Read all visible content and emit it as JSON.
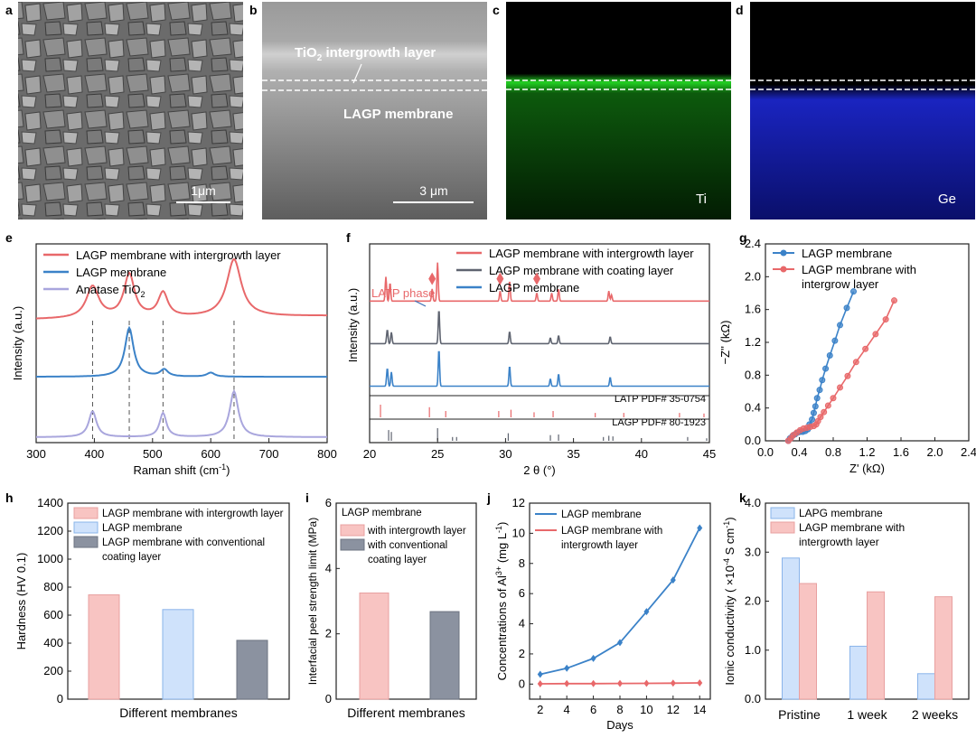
{
  "figure": {
    "panel_letters": {
      "a": "a",
      "b": "b",
      "c": "c",
      "d": "d",
      "e": "e",
      "f": "f",
      "g": "g",
      "h": "h",
      "i": "i",
      "j": "j",
      "k": "k"
    },
    "images": {
      "a": {
        "description_scale": "1μm"
      },
      "b": {
        "top_label_main": "TiO",
        "top_label_sub": "2",
        "top_label_rest": " intergrowth layer",
        "bottom_label": "LAGP membrane",
        "scale": "3 μm"
      },
      "c": {
        "element": "Ti",
        "color": "#2fbf2f"
      },
      "d": {
        "element": "Ge",
        "color": "#2a35e0"
      }
    }
  },
  "colors": {
    "red": "#e8686a",
    "blue": "#3b82c8",
    "lavender": "#a9a6dd",
    "gray": "#5f6470",
    "pink_fill": "#f8c4c2",
    "blue_fill": "#cfe2fb",
    "gray_fill": "#8b92a0"
  },
  "chart_data": [
    {
      "panel": "e",
      "type": "line",
      "xlabel": "Raman shift (cm",
      "xlabel_sup": "-1",
      "xlabel_end": ")",
      "ylabel": "Intensity (a.u.)",
      "xlim": [
        300,
        800
      ],
      "xticks": [
        "300",
        "400",
        "500",
        "600",
        "700",
        "800"
      ],
      "ref_lines": [
        397,
        460,
        518,
        640
      ],
      "series": [
        {
          "name": "LAGP membrane with intergrowth layer",
          "color": "#e8686a",
          "offset": 2.05,
          "baseline": 0.06,
          "peaks": [
            [
              397,
              0.55,
              13
            ],
            [
              460,
              0.75,
              11
            ],
            [
              518,
              0.42,
              10
            ],
            [
              640,
              1.0,
              15
            ]
          ]
        },
        {
          "name": "LAGP membrane",
          "color": "#3b82c8",
          "offset": 1.05,
          "baseline": 0.0,
          "peaks": [
            [
              460,
              0.85,
              9
            ],
            [
              520,
              0.12,
              8
            ],
            [
              600,
              0.07,
              8
            ]
          ]
        },
        {
          "name": "Anatase TiO",
          "name_sub": "2",
          "color": "#a9a6dd",
          "offset": 0.0,
          "baseline": 0.0,
          "peaks": [
            [
              397,
              0.45,
              8
            ],
            [
              518,
              0.42,
              7
            ],
            [
              640,
              0.8,
              9
            ]
          ]
        }
      ]
    },
    {
      "panel": "f",
      "type": "line",
      "xlabel": "2 θ (°)",
      "ylabel": "Intensity (a.u.)",
      "xlim": [
        20,
        45
      ],
      "xticks": [
        "20",
        "25",
        "30",
        "35",
        "40",
        "45"
      ],
      "annotation": "LATP phase",
      "diamonds": [
        24.6,
        29.6,
        32.3
      ],
      "series": [
        {
          "name": "LAGP membrane with intergrowth layer",
          "color": "#e8686a",
          "offset": 2.2,
          "peaks": [
            [
              21.2,
              0.6
            ],
            [
              21.5,
              0.45
            ],
            [
              24.6,
              0.3
            ],
            [
              25.0,
              0.95
            ],
            [
              29.6,
              0.25
            ],
            [
              30.3,
              0.5
            ],
            [
              32.3,
              0.2
            ],
            [
              33.4,
              0.2
            ],
            [
              33.9,
              0.3
            ],
            [
              37.6,
              0.25
            ],
            [
              37.8,
              0.15
            ]
          ]
        },
        {
          "name": "LAGP membrane with coating layer",
          "color": "#5f6470",
          "offset": 1.15,
          "peaks": [
            [
              21.3,
              0.35
            ],
            [
              21.6,
              0.28
            ],
            [
              25.1,
              0.85
            ],
            [
              30.3,
              0.3
            ],
            [
              33.3,
              0.14
            ],
            [
              33.9,
              0.2
            ],
            [
              37.7,
              0.17
            ]
          ]
        },
        {
          "name": "LAGP membrane",
          "color": "#3b82c8",
          "offset": 0.1,
          "peaks": [
            [
              21.3,
              0.45
            ],
            [
              21.6,
              0.35
            ],
            [
              25.1,
              0.92
            ],
            [
              30.3,
              0.5
            ],
            [
              33.3,
              0.18
            ],
            [
              33.9,
              0.3
            ],
            [
              37.7,
              0.22
            ]
          ]
        }
      ],
      "refs": [
        {
          "name": "LATP PDF# 35-0754",
          "color": "#e8686a",
          "sticks": [
            [
              20.8,
              1.0
            ],
            [
              24.4,
              0.8
            ],
            [
              25.6,
              0.5
            ],
            [
              29.5,
              0.5
            ],
            [
              30.4,
              0.6
            ],
            [
              32.1,
              0.4
            ],
            [
              33.5,
              0.5
            ],
            [
              36.6,
              0.35
            ],
            [
              38.7,
              0.35
            ],
            [
              42.8,
              0.35
            ],
            [
              44.6,
              0.3
            ]
          ]
        },
        {
          "name": "LAGP PDF# 80-1923",
          "color": "#5f6470",
          "sticks": [
            [
              21.4,
              0.85
            ],
            [
              21.6,
              0.7
            ],
            [
              25.0,
              1.0
            ],
            [
              26.1,
              0.3
            ],
            [
              26.4,
              0.3
            ],
            [
              30.2,
              0.6
            ],
            [
              33.3,
              0.45
            ],
            [
              33.9,
              0.5
            ],
            [
              37.2,
              0.3
            ],
            [
              37.6,
              0.4
            ],
            [
              37.9,
              0.35
            ],
            [
              43.4,
              0.3
            ],
            [
              44.8,
              0.2
            ]
          ]
        }
      ]
    },
    {
      "panel": "g",
      "type": "scatter",
      "xlabel": "Z' (kΩ)",
      "ylabel": "−Z'' (kΩ)",
      "xlim": [
        0.0,
        2.4
      ],
      "ylim": [
        0.0,
        2.4
      ],
      "xticks": [
        "0.0",
        "0.4",
        "0.8",
        "1.2",
        "1.6",
        "2.0",
        "2.4"
      ],
      "yticks": [
        "0.0",
        "0.4",
        "0.8",
        "1.2",
        "1.6",
        "2.0",
        "2.4"
      ],
      "series": [
        {
          "name": "LAGP membrane",
          "color": "#3b82c8",
          "x": [
            0.27,
            0.29,
            0.32,
            0.35,
            0.38,
            0.41,
            0.44,
            0.47,
            0.5,
            0.52,
            0.55,
            0.57,
            0.59,
            0.61,
            0.64,
            0.67,
            0.71,
            0.76,
            0.82,
            0.88,
            0.96,
            1.04
          ],
          "y": [
            0.0,
            0.03,
            0.06,
            0.08,
            0.1,
            0.11,
            0.11,
            0.12,
            0.14,
            0.2,
            0.26,
            0.34,
            0.42,
            0.52,
            0.62,
            0.74,
            0.88,
            1.04,
            1.22,
            1.41,
            1.62,
            1.82
          ]
        },
        {
          "name": "LAGP membrane with",
          "name2": "intergrow layer",
          "color": "#e8686a",
          "x": [
            0.27,
            0.3,
            0.33,
            0.37,
            0.41,
            0.45,
            0.49,
            0.53,
            0.57,
            0.6,
            0.62,
            0.65,
            0.69,
            0.74,
            0.8,
            0.88,
            0.97,
            1.07,
            1.18,
            1.3,
            1.42,
            1.52
          ],
          "y": [
            0.0,
            0.03,
            0.07,
            0.1,
            0.13,
            0.15,
            0.16,
            0.17,
            0.18,
            0.2,
            0.24,
            0.29,
            0.35,
            0.43,
            0.52,
            0.65,
            0.79,
            0.96,
            1.12,
            1.3,
            1.48,
            1.71
          ]
        }
      ]
    },
    {
      "panel": "h",
      "type": "bar",
      "xlabel": "Different membranes",
      "ylabel": "Hardness (HV 0.1)",
      "ylim": [
        0,
        1400
      ],
      "yticks": [
        "0",
        "200",
        "400",
        "600",
        "800",
        "1000",
        "1200",
        "1400"
      ],
      "series": [
        {
          "name": "LAGP membrane with intergrowth layer",
          "value": 745,
          "fill": "#f8c4c2",
          "stroke": "#e8a0a0"
        },
        {
          "name": "LAGP membrane",
          "value": 640,
          "fill": "#cfe2fb",
          "stroke": "#8ab4ea"
        },
        {
          "name": "LAGP membrane with conventional",
          "name2": "coating layer",
          "value": 420,
          "fill": "#8b92a0",
          "stroke": "#6d7482"
        }
      ]
    },
    {
      "panel": "i",
      "type": "bar",
      "xlabel": "Different membranes",
      "ylabel": "Interfacial peel strength limit (MPa)",
      "ylim": [
        0,
        6
      ],
      "yticks": [
        "0",
        "2",
        "4",
        "6"
      ],
      "legend_title": "LAGP membrane",
      "series": [
        {
          "name": "with intergrowth layer",
          "value": 3.25,
          "fill": "#f8c4c2",
          "stroke": "#e8a0a0"
        },
        {
          "name": "with conventional",
          "name2": "coating layer",
          "value": 2.68,
          "fill": "#8b92a0",
          "stroke": "#6d7482"
        }
      ]
    },
    {
      "panel": "j",
      "type": "line",
      "xlabel": "Days",
      "ylabel": "Concentrations of Al",
      "ylabel_sup": "3+",
      "ylabel_end": " (mg L",
      "ylabel_sup2": "-1",
      "ylabel_end2": ")",
      "xlim": [
        1.2,
        14.8
      ],
      "ylim": [
        -1,
        12
      ],
      "xticks": [
        "2",
        "4",
        "6",
        "8",
        "10",
        "12",
        "14"
      ],
      "yticks": [
        "0",
        "2",
        "4",
        "6",
        "8",
        "10",
        "12"
      ],
      "x": [
        2,
        4,
        6,
        8,
        10,
        12,
        14
      ],
      "series": [
        {
          "name": "LAGP membrane",
          "color": "#3b82c8",
          "values": [
            0.65,
            1.05,
            1.7,
            2.75,
            4.8,
            6.9,
            10.35
          ]
        },
        {
          "name": "LAGP membrane with",
          "name2": "intergrowth layer",
          "color": "#e8686a",
          "values": [
            0.02,
            0.03,
            0.03,
            0.04,
            0.05,
            0.06,
            0.08
          ]
        }
      ]
    },
    {
      "panel": "k",
      "type": "bar",
      "ylabel": "Ionic conductivity  ( ×10",
      "ylabel_sup": "-4",
      "ylabel_end": " S cm",
      "ylabel_sup2": "-1",
      "ylabel_end2": ")",
      "ylim": [
        0,
        4.0
      ],
      "yticks": [
        "0.0",
        "1.0",
        "2.0",
        "3.0",
        "4.0"
      ],
      "categories": [
        "Pristine",
        "1 week",
        "2 weeks"
      ],
      "series": [
        {
          "name": "LAPG membrane",
          "values": [
            2.88,
            1.08,
            0.52
          ],
          "fill": "#cfe2fb",
          "stroke": "#8ab4ea"
        },
        {
          "name": "LAGP membrane with",
          "name2": "intergrowth layer",
          "values": [
            2.36,
            2.19,
            2.09
          ],
          "fill": "#f8c4c2",
          "stroke": "#e8a0a0"
        }
      ]
    }
  ]
}
